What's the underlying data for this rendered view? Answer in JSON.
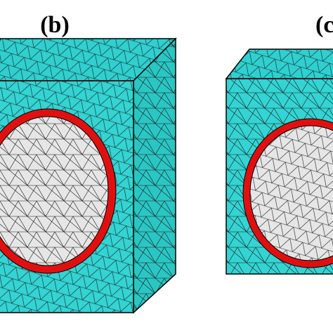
{
  "panels": [
    {
      "label": "(b)"
    },
    {
      "label": "(c"
    }
  ]
}
